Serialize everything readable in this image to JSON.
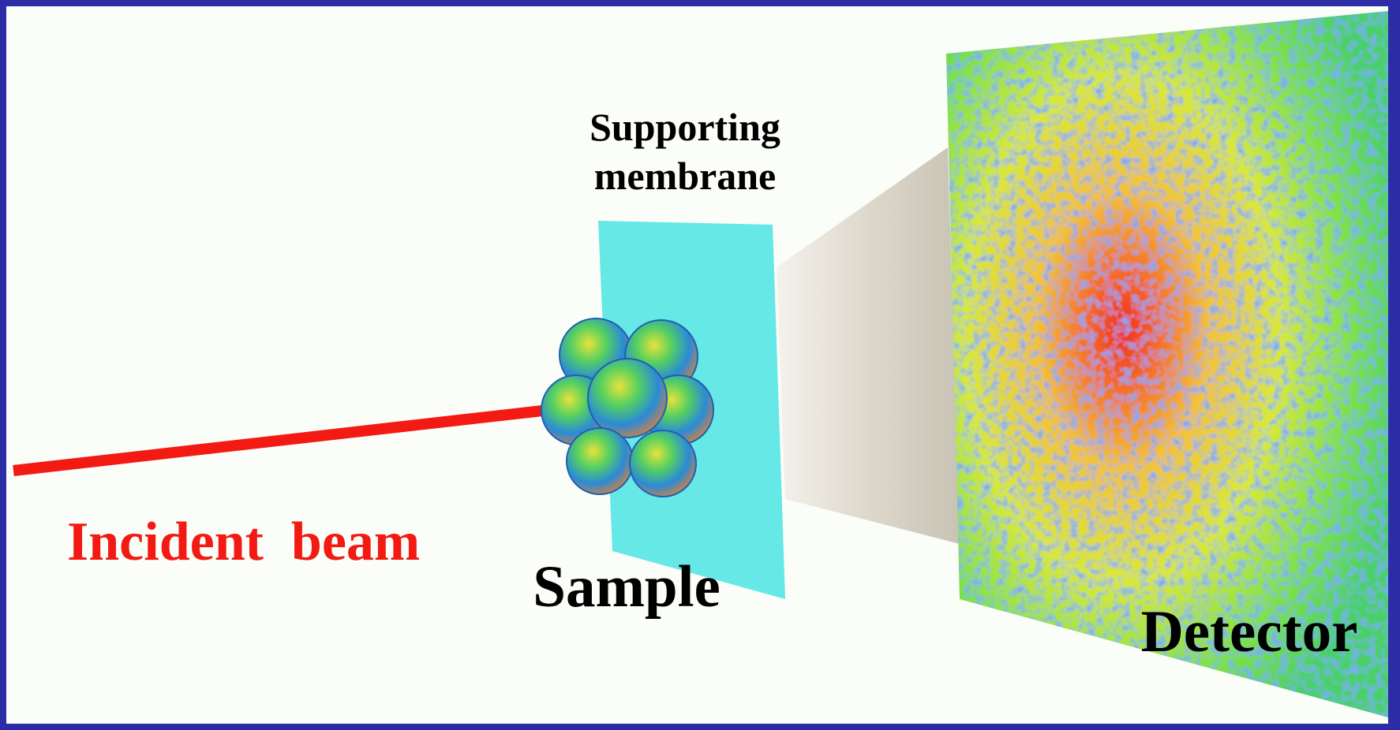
{
  "labels": {
    "membrane": [
      "Supporting",
      "membrane"
    ],
    "beam": "Incident  beam",
    "sample": "Sample",
    "detector": "Detector"
  }
}
